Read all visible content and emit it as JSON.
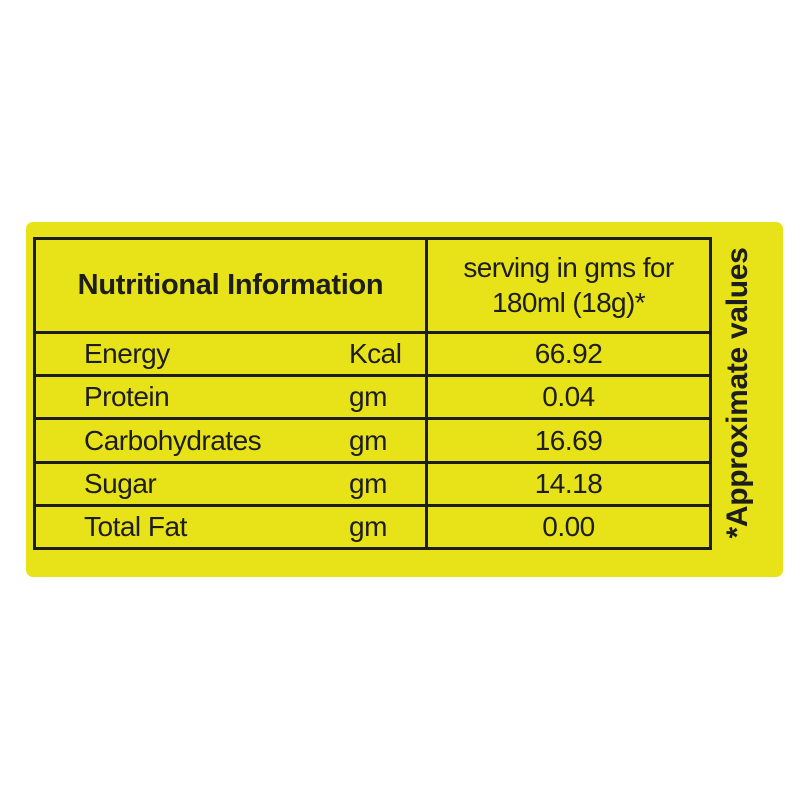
{
  "label": {
    "colors": {
      "panel_background": "#e7e318",
      "ink": "#1d1d1b",
      "page_background": "#ffffff"
    },
    "table": {
      "header": {
        "title": "Nutritional Information",
        "serving_line1": "serving in gms for",
        "serving_line2": "180ml (18g)*"
      },
      "rows": [
        {
          "label": "Energy",
          "unit": "Kcal",
          "value": "66.92"
        },
        {
          "label": "Protein",
          "unit": "gm",
          "value": "0.04"
        },
        {
          "label": "Carbohydrates",
          "unit": "gm",
          "value": "16.69"
        },
        {
          "label": "Sugar",
          "unit": "gm",
          "value": "14.18"
        },
        {
          "label": "Total Fat",
          "unit": "gm",
          "value": "0.00"
        }
      ]
    },
    "footnote": "*Approximate values"
  }
}
